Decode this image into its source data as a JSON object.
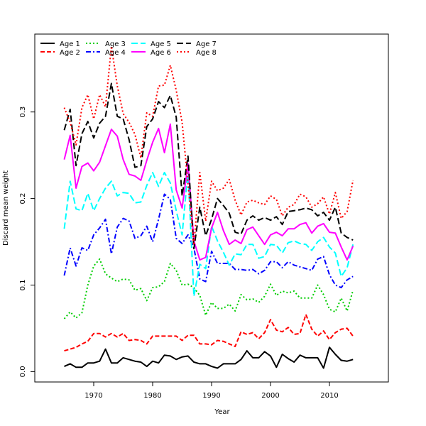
{
  "chart_data": {
    "type": "line",
    "title": "",
    "xlabel": "Year",
    "ylabel": "Discard mean weight",
    "xlim": [
      1960,
      2020
    ],
    "ylim": [
      -0.012,
      0.39
    ],
    "x_ticks": [
      1970,
      1980,
      1990,
      2000,
      2010
    ],
    "y_ticks": [
      0.0,
      0.1,
      0.2,
      0.3
    ],
    "y_tick_labels": [
      "0.0",
      "0.1",
      "0.2",
      "0.3"
    ],
    "grid": false,
    "legend_position": "top-left",
    "x": [
      1965,
      1966,
      1967,
      1968,
      1969,
      1970,
      1971,
      1972,
      1973,
      1974,
      1975,
      1976,
      1977,
      1978,
      1979,
      1980,
      1981,
      1982,
      1983,
      1984,
      1985,
      1986,
      1987,
      1988,
      1989,
      1990,
      1991,
      1992,
      1993,
      1994,
      1995,
      1996,
      1997,
      1998,
      1999,
      2000,
      2001,
      2002,
      2003,
      2004,
      2005,
      2006,
      2007,
      2008,
      2009,
      2010,
      2011,
      2012,
      2013,
      2014
    ],
    "series": [
      {
        "name": "Age 1",
        "color": "#000000",
        "dash": "solid",
        "values": [
          0.006,
          0.009,
          0.005,
          0.005,
          0.01,
          0.01,
          0.012,
          0.026,
          0.01,
          0.01,
          0.016,
          0.014,
          0.012,
          0.011,
          0.006,
          0.012,
          0.01,
          0.019,
          0.018,
          0.014,
          0.017,
          0.018,
          0.011,
          0.009,
          0.009,
          0.006,
          0.004,
          0.009,
          0.009,
          0.009,
          0.014,
          0.024,
          0.016,
          0.016,
          0.023,
          0.018,
          0.005,
          0.02,
          0.015,
          0.011,
          0.019,
          0.016,
          0.016,
          0.016,
          0.004,
          0.028,
          0.02,
          0.013,
          0.012,
          0.014
        ]
      },
      {
        "name": "Age 2",
        "color": "#ff0000",
        "dash": "dashed",
        "values": [
          0.024,
          0.026,
          0.028,
          0.032,
          0.035,
          0.044,
          0.044,
          0.04,
          0.044,
          0.04,
          0.044,
          0.036,
          0.037,
          0.036,
          0.032,
          0.041,
          0.041,
          0.041,
          0.041,
          0.041,
          0.036,
          0.042,
          0.042,
          0.032,
          0.032,
          0.031,
          0.036,
          0.035,
          0.032,
          0.029,
          0.046,
          0.043,
          0.045,
          0.038,
          0.045,
          0.06,
          0.048,
          0.046,
          0.051,
          0.043,
          0.044,
          0.066,
          0.049,
          0.041,
          0.047,
          0.037,
          0.045,
          0.049,
          0.05,
          0.041
        ]
      },
      {
        "name": "Age 3",
        "color": "#00cd00",
        "dash": "dotted",
        "values": [
          0.061,
          0.069,
          0.062,
          0.068,
          0.1,
          0.122,
          0.13,
          0.113,
          0.108,
          0.104,
          0.107,
          0.106,
          0.094,
          0.096,
          0.082,
          0.097,
          0.098,
          0.104,
          0.125,
          0.117,
          0.1,
          0.101,
          0.097,
          0.088,
          0.065,
          0.08,
          0.073,
          0.073,
          0.078,
          0.07,
          0.089,
          0.083,
          0.084,
          0.08,
          0.087,
          0.101,
          0.088,
          0.093,
          0.091,
          0.093,
          0.085,
          0.085,
          0.085,
          0.1,
          0.089,
          0.072,
          0.069,
          0.085,
          0.07,
          0.094
        ]
      },
      {
        "name": "Age 4",
        "color": "#0000ff",
        "dash": "dashdot",
        "values": [
          0.111,
          0.143,
          0.122,
          0.143,
          0.14,
          0.158,
          0.166,
          0.176,
          0.136,
          0.167,
          0.177,
          0.174,
          0.154,
          0.157,
          0.168,
          0.15,
          0.176,
          0.205,
          0.199,
          0.154,
          0.148,
          0.158,
          0.143,
          0.107,
          0.104,
          0.139,
          0.125,
          0.125,
          0.125,
          0.118,
          0.118,
          0.117,
          0.118,
          0.113,
          0.117,
          0.127,
          0.127,
          0.12,
          0.127,
          0.123,
          0.121,
          0.119,
          0.117,
          0.13,
          0.133,
          0.112,
          0.1,
          0.097,
          0.106,
          0.11
        ]
      },
      {
        "name": "Age 5",
        "color": "#00ffff",
        "dash": "longdash",
        "values": [
          0.165,
          0.22,
          0.188,
          0.186,
          0.206,
          0.186,
          0.2,
          0.212,
          0.22,
          0.203,
          0.207,
          0.206,
          0.195,
          0.196,
          0.215,
          0.23,
          0.214,
          0.23,
          0.218,
          0.186,
          0.158,
          0.232,
          0.087,
          0.124,
          0.119,
          0.168,
          0.151,
          0.138,
          0.123,
          0.136,
          0.135,
          0.147,
          0.147,
          0.131,
          0.133,
          0.147,
          0.146,
          0.137,
          0.149,
          0.151,
          0.148,
          0.147,
          0.14,
          0.15,
          0.155,
          0.144,
          0.137,
          0.11,
          0.12,
          0.147
        ]
      },
      {
        "name": "Age 6",
        "color": "#ff00ff",
        "dash": "solid",
        "values": [
          0.245,
          0.273,
          0.212,
          0.237,
          0.241,
          0.232,
          0.242,
          0.261,
          0.28,
          0.272,
          0.245,
          0.228,
          0.226,
          0.221,
          0.244,
          0.265,
          0.281,
          0.253,
          0.286,
          0.21,
          0.189,
          0.24,
          0.151,
          0.129,
          0.132,
          0.166,
          0.184,
          0.163,
          0.147,
          0.152,
          0.148,
          0.164,
          0.167,
          0.157,
          0.147,
          0.158,
          0.161,
          0.157,
          0.165,
          0.165,
          0.17,
          0.172,
          0.16,
          0.168,
          0.171,
          0.161,
          0.16,
          0.144,
          0.129,
          0.145
        ]
      },
      {
        "name": "Age 7",
        "color": "#000000",
        "dash": "longdash",
        "values": [
          0.279,
          0.303,
          0.238,
          0.275,
          0.289,
          0.27,
          0.287,
          0.295,
          0.333,
          0.295,
          0.292,
          0.268,
          0.236,
          0.238,
          0.283,
          0.292,
          0.312,
          0.305,
          0.319,
          0.294,
          0.203,
          0.249,
          0.142,
          0.19,
          0.157,
          0.176,
          0.2,
          0.192,
          0.183,
          0.161,
          0.159,
          0.175,
          0.18,
          0.175,
          0.178,
          0.175,
          0.179,
          0.17,
          0.185,
          0.186,
          0.187,
          0.189,
          0.187,
          0.18,
          0.184,
          0.175,
          0.19,
          0.16,
          0.155,
          0.152
        ]
      },
      {
        "name": "Age 8",
        "color": "#ff0000",
        "dash": "dotted2",
        "values": [
          0.305,
          0.288,
          0.262,
          0.305,
          0.32,
          0.292,
          0.32,
          0.306,
          0.376,
          0.33,
          0.298,
          0.288,
          0.274,
          0.247,
          0.299,
          0.295,
          0.33,
          0.331,
          0.354,
          0.325,
          0.288,
          0.217,
          0.146,
          0.23,
          0.174,
          0.22,
          0.209,
          0.212,
          0.222,
          0.198,
          0.181,
          0.196,
          0.198,
          0.195,
          0.193,
          0.203,
          0.199,
          0.18,
          0.19,
          0.193,
          0.205,
          0.202,
          0.19,
          0.194,
          0.202,
          0.182,
          0.207,
          0.177,
          0.185,
          0.221
        ]
      }
    ]
  }
}
